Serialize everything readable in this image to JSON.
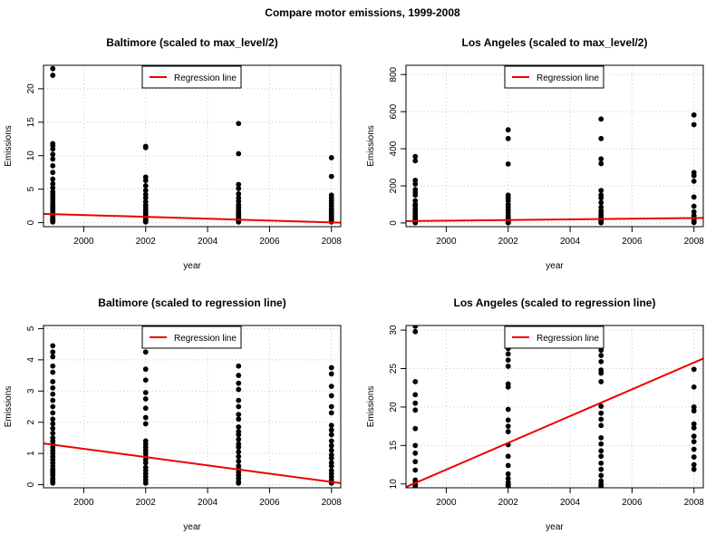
{
  "figure": {
    "title": "Compare motor emissions, 1999-2008"
  },
  "colors": {
    "points": "#000000",
    "regression": "#ee0000",
    "grid": "#c8c8c8"
  },
  "chart_data": [
    {
      "type": "scatter",
      "title": "Baltimore (scaled to max_level/2)",
      "xlabel": "year",
      "ylabel": "Emissions",
      "xlim": [
        1998.7,
        2008.3
      ],
      "ylim": [
        -0.6,
        23.5
      ],
      "xticks": [
        2000,
        2002,
        2004,
        2006,
        2008
      ],
      "yticks": [
        0,
        5,
        10,
        15,
        20
      ],
      "grid": true,
      "legend": {
        "label": "Regression line",
        "position": "top-center"
      },
      "regression": {
        "x": [
          1998.7,
          2008.3
        ],
        "y": [
          1.32,
          0.0
        ]
      },
      "x": [
        1999,
        1999,
        1999,
        1999,
        1999,
        1999,
        1999,
        1999,
        1999,
        1999,
        1999,
        1999,
        1999,
        1999,
        1999,
        1999,
        1999,
        1999,
        1999,
        1999,
        1999,
        1999,
        1999,
        1999,
        1999,
        1999,
        1999,
        1999,
        1999,
        1999,
        1999,
        1999,
        2002,
        2002,
        2002,
        2002,
        2002,
        2002,
        2002,
        2002,
        2002,
        2002,
        2002,
        2002,
        2002,
        2002,
        2002,
        2002,
        2002,
        2002,
        2002,
        2002,
        2002,
        2005,
        2005,
        2005,
        2005,
        2005,
        2005,
        2005,
        2005,
        2005,
        2005,
        2005,
        2005,
        2005,
        2005,
        2005,
        2005,
        2005,
        2005,
        2005,
        2005,
        2005,
        2008,
        2008,
        2008,
        2008,
        2008,
        2008,
        2008,
        2008,
        2008,
        2008,
        2008,
        2008,
        2008,
        2008,
        2008,
        2008,
        2008
      ],
      "y": [
        23.0,
        22.0,
        11.8,
        11.5,
        11.0,
        10.2,
        9.5,
        8.5,
        7.5,
        6.5,
        5.8,
        5.2,
        4.6,
        4.2,
        3.8,
        3.4,
        3.0,
        2.7,
        2.4,
        2.1,
        1.8,
        1.5,
        1.3,
        1.1,
        0.9,
        0.7,
        0.6,
        0.5,
        0.4,
        0.3,
        0.2,
        0.1,
        11.4,
        11.2,
        6.8,
        6.3,
        5.5,
        4.8,
        4.2,
        3.7,
        3.1,
        2.6,
        2.2,
        1.8,
        1.5,
        1.2,
        0.9,
        0.7,
        0.5,
        0.4,
        0.3,
        0.2,
        0.1,
        14.8,
        10.3,
        5.7,
        5.1,
        4.3,
        3.7,
        3.2,
        2.7,
        2.3,
        1.9,
        1.6,
        1.3,
        1.1,
        0.9,
        0.7,
        0.6,
        0.5,
        0.4,
        0.3,
        0.2,
        0.1,
        9.7,
        6.9,
        4.1,
        3.7,
        3.3,
        2.9,
        2.5,
        2.1,
        1.8,
        1.5,
        1.2,
        0.9,
        0.7,
        0.5,
        0.4,
        0.3,
        0.1
      ]
    },
    {
      "type": "scatter",
      "title": "Los Angeles (scaled to max_level/2)",
      "xlabel": "year",
      "ylabel": "Emissions",
      "xlim": [
        1998.7,
        2008.3
      ],
      "ylim": [
        -20,
        850
      ],
      "xticks": [
        2000,
        2002,
        2004,
        2006,
        2008
      ],
      "yticks": [
        0,
        200,
        400,
        600,
        800
      ],
      "grid": true,
      "legend": {
        "label": "Regression line",
        "position": "top-center"
      },
      "regression": {
        "x": [
          1998.7,
          2008.3
        ],
        "y": [
          10,
          27
        ]
      },
      "x": [
        1999,
        1999,
        1999,
        1999,
        1999,
        1999,
        1999,
        1999,
        1999,
        1999,
        1999,
        1999,
        1999,
        1999,
        1999,
        1999,
        1999,
        1999,
        1999,
        1999,
        1999,
        1999,
        1999,
        2002,
        2002,
        2002,
        2002,
        2002,
        2002,
        2002,
        2002,
        2002,
        2002,
        2002,
        2002,
        2002,
        2002,
        2002,
        2002,
        2002,
        2002,
        2005,
        2005,
        2005,
        2005,
        2005,
        2005,
        2005,
        2005,
        2005,
        2005,
        2005,
        2005,
        2005,
        2005,
        2005,
        2005,
        2005,
        2005,
        2005,
        2008,
        2008,
        2008,
        2008,
        2008,
        2008,
        2008,
        2008,
        2008,
        2008,
        2008,
        2008,
        2008
      ],
      "y": [
        358,
        335,
        230,
        210,
        180,
        165,
        150,
        120,
        100,
        90,
        75,
        65,
        55,
        45,
        35,
        28,
        22,
        15,
        10,
        6,
        4,
        2,
        1,
        502,
        455,
        318,
        150,
        135,
        120,
        100,
        85,
        70,
        55,
        40,
        30,
        22,
        15,
        10,
        6,
        3,
        1,
        560,
        455,
        345,
        320,
        175,
        150,
        135,
        110,
        85,
        65,
        50,
        40,
        30,
        22,
        15,
        10,
        6,
        3,
        1,
        582,
        530,
        272,
        255,
        225,
        140,
        90,
        60,
        40,
        25,
        15,
        8,
        2
      ]
    },
    {
      "type": "scatter",
      "title": "Baltimore (scaled to regression line)",
      "xlabel": "year",
      "ylabel": "Emissions",
      "xlim": [
        1998.7,
        2008.3
      ],
      "ylim": [
        -0.1,
        5.1
      ],
      "xticks": [
        2000,
        2002,
        2004,
        2006,
        2008
      ],
      "yticks": [
        0,
        1,
        2,
        3,
        4,
        5
      ],
      "grid": true,
      "legend": {
        "label": "Regression line",
        "position": "top-center"
      },
      "regression": {
        "x": [
          1998.7,
          2008.3
        ],
        "y": [
          1.32,
          0.05
        ]
      },
      "x": [
        1999,
        1999,
        1999,
        1999,
        1999,
        1999,
        1999,
        1999,
        1999,
        1999,
        1999,
        1999,
        1999,
        1999,
        1999,
        1999,
        1999,
        1999,
        1999,
        1999,
        1999,
        1999,
        1999,
        1999,
        1999,
        1999,
        1999,
        1999,
        1999,
        1999,
        1999,
        1999,
        1999,
        1999,
        2002,
        2002,
        2002,
        2002,
        2002,
        2002,
        2002,
        2002,
        2002,
        2002,
        2002,
        2002,
        2002,
        2002,
        2002,
        2002,
        2002,
        2002,
        2002,
        2002,
        2002,
        2002,
        2005,
        2005,
        2005,
        2005,
        2005,
        2005,
        2005,
        2005,
        2005,
        2005,
        2005,
        2005,
        2005,
        2005,
        2005,
        2005,
        2005,
        2005,
        2005,
        2005,
        2005,
        2005,
        2005,
        2005,
        2008,
        2008,
        2008,
        2008,
        2008,
        2008,
        2008,
        2008,
        2008,
        2008,
        2008,
        2008,
        2008,
        2008,
        2008,
        2008,
        2008,
        2008,
        2008,
        2008,
        2008
      ],
      "y": [
        4.45,
        4.25,
        4.1,
        3.8,
        3.6,
        3.3,
        3.1,
        2.9,
        2.7,
        2.5,
        2.3,
        2.1,
        1.95,
        1.8,
        1.65,
        1.5,
        1.4,
        1.3,
        1.2,
        1.1,
        1.0,
        0.9,
        0.8,
        0.7,
        0.6,
        0.5,
        0.45,
        0.4,
        0.35,
        0.3,
        0.2,
        0.15,
        0.1,
        0.05,
        4.25,
        3.7,
        3.35,
        2.95,
        2.75,
        2.45,
        2.15,
        1.95,
        1.4,
        1.3,
        1.2,
        1.1,
        1.0,
        0.9,
        0.8,
        0.7,
        0.55,
        0.45,
        0.35,
        0.25,
        0.15,
        0.05,
        3.8,
        3.5,
        3.25,
        3.05,
        2.7,
        2.5,
        2.25,
        2.1,
        1.85,
        1.7,
        1.6,
        1.45,
        1.3,
        1.2,
        1.05,
        0.9,
        0.75,
        0.6,
        0.5,
        0.4,
        0.3,
        0.2,
        0.1,
        0.05,
        3.75,
        3.55,
        3.15,
        2.85,
        2.5,
        2.3,
        1.9,
        1.75,
        1.6,
        1.4,
        1.25,
        1.1,
        0.95,
        0.85,
        0.7,
        0.6,
        0.45,
        0.35,
        0.25,
        0.15,
        0.05
      ]
    },
    {
      "type": "scatter",
      "title": "Los Angeles (scaled to regression line)",
      "xlabel": "year",
      "ylabel": "Emissions",
      "xlim": [
        1998.7,
        2008.3
      ],
      "ylim": [
        9.5,
        30.6
      ],
      "xticks": [
        2000,
        2002,
        2004,
        2006,
        2008
      ],
      "yticks": [
        10,
        15,
        20,
        25,
        30
      ],
      "grid": true,
      "legend": {
        "label": "Regression line",
        "position": "top-center"
      },
      "regression": {
        "x": [
          1998.7,
          2008.3
        ],
        "y": [
          9.6,
          26.3
        ]
      },
      "x": [
        1999,
        1999,
        1999,
        1999,
        1999,
        1999,
        1999,
        1999,
        1999,
        1999,
        1999,
        1999,
        1999,
        1999,
        1999,
        1999,
        2002,
        2002,
        2002,
        2002,
        2002,
        2002,
        2002,
        2002,
        2002,
        2002,
        2002,
        2002,
        2002,
        2002,
        2002,
        2002,
        2002,
        2002,
        2002,
        2005,
        2005,
        2005,
        2005,
        2005,
        2005,
        2005,
        2005,
        2005,
        2005,
        2005,
        2005,
        2005,
        2005,
        2005,
        2005,
        2005,
        2005,
        2005,
        2005,
        2005,
        2008,
        2008,
        2008,
        2008,
        2008,
        2008,
        2008,
        2008,
        2008,
        2008,
        2008,
        2008
      ],
      "y": [
        30.5,
        29.8,
        23.3,
        21.6,
        20.5,
        19.6,
        17.2,
        15.0,
        14.0,
        12.9,
        11.8,
        10.5,
        10.2,
        9.9,
        9.8,
        9.6,
        27.6,
        26.9,
        26.1,
        25.3,
        23.0,
        22.6,
        19.7,
        18.3,
        17.5,
        16.8,
        15.1,
        13.6,
        12.4,
        11.3,
        10.7,
        10.2,
        9.9,
        9.8,
        9.6,
        27.4,
        26.7,
        25.9,
        24.8,
        24.4,
        23.3,
        20.1,
        19.2,
        18.4,
        17.6,
        16.0,
        15.2,
        14.3,
        13.6,
        12.7,
        11.9,
        11.1,
        10.4,
        10.0,
        9.8,
        9.6,
        24.9,
        22.6,
        20.0,
        19.5,
        17.8,
        17.3,
        16.2,
        15.5,
        14.5,
        13.5,
        12.5,
        11.9
      ]
    }
  ]
}
